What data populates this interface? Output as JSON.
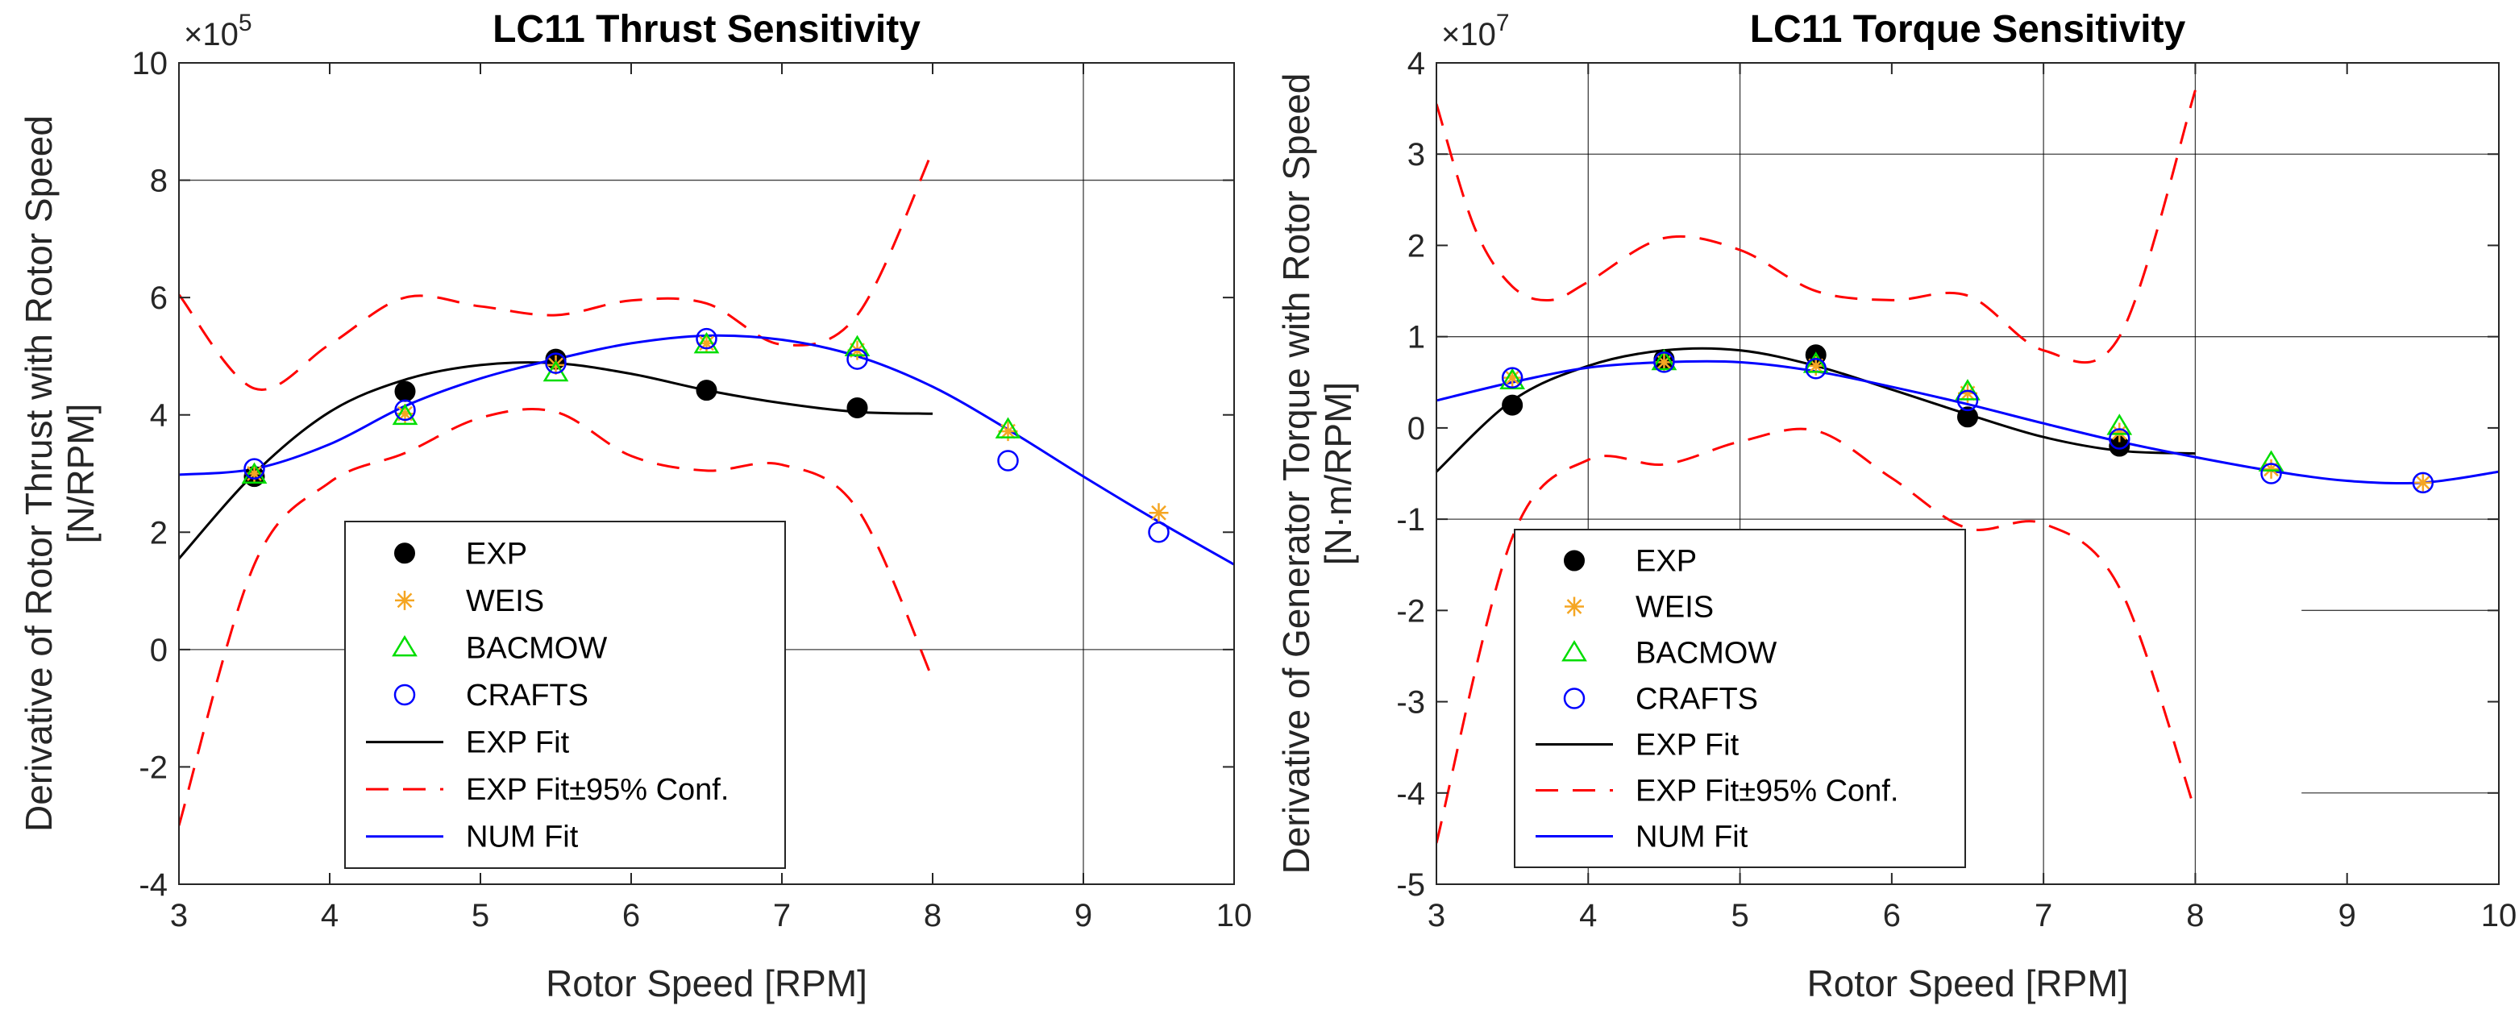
{
  "chart_data": [
    {
      "type": "scatter",
      "title": "LC11 Thrust Sensitivity",
      "xlabel": "Rotor Speed [RPM]",
      "ylabel_lines": [
        "Derivative of Rotor Thrust with Rotor Speed",
        "[N/RPM]"
      ],
      "y_multiplier": "×10",
      "y_multiplier_exp": "5",
      "xlim": [
        3,
        10
      ],
      "ylim": [
        -4,
        10
      ],
      "xticks": [
        "3",
        "4",
        "5",
        "6",
        "7",
        "8",
        "9",
        "10"
      ],
      "yticks": [
        "-4",
        "-2",
        "0",
        "2",
        "4",
        "6",
        "8",
        "10"
      ],
      "series": [
        {
          "name": "EXP",
          "marker": "filled-circle",
          "color": "#000000",
          "x": [
            3.5,
            4.5,
            5.5,
            6.5,
            7.5
          ],
          "y": [
            2.95,
            4.4,
            4.95,
            4.42,
            4.12
          ]
        },
        {
          "name": "WEIS",
          "marker": "asterisk",
          "color": "#f5a623",
          "x": [
            3.5,
            4.5,
            5.5,
            6.5,
            7.5,
            8.5,
            9.5
          ],
          "y": [
            3.0,
            4.02,
            4.85,
            5.22,
            5.1,
            3.72,
            2.33
          ]
        },
        {
          "name": "BACMOW",
          "marker": "triangle",
          "color": "#00dd00",
          "x": [
            3.5,
            4.5,
            5.5,
            6.5,
            7.5,
            8.5
          ],
          "y": [
            2.98,
            3.98,
            4.72,
            5.2,
            5.15,
            3.75
          ]
        },
        {
          "name": "CRAFTS",
          "marker": "circle",
          "color": "#0000ff",
          "x": [
            3.5,
            4.5,
            5.5,
            6.5,
            7.5,
            8.5,
            9.5
          ],
          "y": [
            3.08,
            4.08,
            4.88,
            5.3,
            4.95,
            3.22,
            2.0
          ]
        },
        {
          "name": "EXP Fit",
          "line": "solid",
          "color": "#000000",
          "x": [
            3,
            3.5,
            4,
            4.5,
            5,
            5.5,
            6,
            6.5,
            7,
            7.5,
            8
          ],
          "y": [
            1.55,
            3.0,
            4.05,
            4.6,
            4.85,
            4.88,
            4.7,
            4.42,
            4.2,
            4.05,
            4.02
          ]
        },
        {
          "name": "EXP Fit±95% Conf.",
          "line": "dashed",
          "color": "#ff0000",
          "x": [
            3,
            3.5,
            4,
            4.5,
            5,
            5.5,
            6,
            6.5,
            7,
            7.5,
            8
          ],
          "y": [
            6.05,
            4.45,
            5.2,
            6.0,
            5.85,
            5.7,
            5.95,
            5.9,
            5.2,
            5.7,
            8.5
          ],
          "x_lower": [
            3,
            3.5,
            4,
            4.5,
            5,
            5.5,
            6,
            6.5,
            7,
            7.5,
            8
          ],
          "y_lower": [
            -3.0,
            1.45,
            2.85,
            3.35,
            3.95,
            4.05,
            3.3,
            3.05,
            3.15,
            2.4,
            -0.5
          ]
        },
        {
          "name": "NUM Fit",
          "line": "solid",
          "color": "#0000ff",
          "x": [
            3,
            3.5,
            4,
            4.5,
            5,
            5.5,
            6,
            6.5,
            7,
            7.5,
            8,
            8.5,
            9,
            9.5,
            10
          ],
          "y": [
            2.98,
            3.08,
            3.5,
            4.15,
            4.62,
            4.95,
            5.22,
            5.35,
            5.28,
            5.0,
            4.48,
            3.75,
            2.95,
            2.18,
            1.45
          ]
        }
      ],
      "grid_h": [
        0,
        8
      ],
      "grid_v": [
        9
      ],
      "legend_position": "lower-left"
    },
    {
      "type": "scatter",
      "title": "LC11 Torque Sensitivity",
      "xlabel": "Rotor Speed [RPM]",
      "ylabel_lines": [
        "Derivative of Generator Torque with Rotor Speed",
        "[N·m/RPM]"
      ],
      "y_multiplier": "×10",
      "y_multiplier_exp": "7",
      "xlim": [
        3,
        10
      ],
      "ylim": [
        -5,
        4
      ],
      "xticks": [
        "3",
        "4",
        "5",
        "6",
        "7",
        "8",
        "9",
        "10"
      ],
      "yticks": [
        "-5",
        "-4",
        "-3",
        "-2",
        "-1",
        "0",
        "1",
        "2",
        "3",
        "4"
      ],
      "series": [
        {
          "name": "EXP",
          "marker": "filled-circle",
          "color": "#000000",
          "x": [
            3.5,
            4.5,
            5.5,
            6.5,
            7.5
          ],
          "y": [
            0.25,
            0.75,
            0.8,
            0.12,
            -0.2
          ]
        },
        {
          "name": "WEIS",
          "marker": "asterisk",
          "color": "#f5a623",
          "x": [
            3.5,
            4.5,
            5.5,
            6.5,
            7.5,
            8.5,
            9.5
          ],
          "y": [
            0.55,
            0.72,
            0.68,
            0.38,
            -0.05,
            -0.45,
            -0.6
          ]
        },
        {
          "name": "BACMOW",
          "marker": "triangle",
          "color": "#00dd00",
          "x": [
            3.5,
            4.5,
            5.5,
            6.5,
            7.5,
            8.5
          ],
          "y": [
            0.52,
            0.73,
            0.7,
            0.4,
            0.02,
            -0.38
          ]
        },
        {
          "name": "CRAFTS",
          "marker": "circle",
          "color": "#0000ff",
          "x": [
            3.5,
            4.5,
            5.5,
            6.5,
            7.5,
            8.5,
            9.5
          ],
          "y": [
            0.55,
            0.72,
            0.65,
            0.3,
            -0.12,
            -0.5,
            -0.6
          ]
        },
        {
          "name": "EXP Fit",
          "line": "solid",
          "color": "#000000",
          "x": [
            3,
            3.5,
            4,
            4.5,
            5,
            5.5,
            6,
            6.5,
            7,
            7.5,
            8
          ],
          "y": [
            -0.48,
            0.3,
            0.68,
            0.85,
            0.85,
            0.68,
            0.42,
            0.15,
            -0.1,
            -0.25,
            -0.28
          ]
        },
        {
          "name": "EXP Fit±95% Conf.",
          "line": "dashed",
          "color": "#ff0000",
          "x": [
            3,
            3.25,
            3.5,
            3.75,
            4,
            4.5,
            5,
            5.5,
            6,
            6.5,
            7,
            7.5,
            8
          ],
          "y": [
            3.55,
            2.2,
            1.55,
            1.4,
            1.6,
            2.08,
            1.95,
            1.5,
            1.4,
            1.45,
            0.85,
            1.0,
            3.7
          ],
          "x_lower": [
            3,
            3.5,
            4,
            4.5,
            5,
            5.5,
            6,
            6.5,
            7,
            7.5,
            8
          ],
          "y_lower": [
            -4.55,
            -1.2,
            -0.35,
            -0.4,
            -0.15,
            -0.03,
            -0.55,
            -1.1,
            -1.05,
            -1.75,
            -4.2
          ]
        },
        {
          "name": "NUM Fit",
          "line": "solid",
          "color": "#0000ff",
          "x": [
            3,
            3.5,
            4,
            4.5,
            5,
            5.5,
            6,
            6.5,
            7,
            7.5,
            8,
            8.5,
            9,
            9.5,
            10
          ],
          "y": [
            0.3,
            0.5,
            0.66,
            0.72,
            0.72,
            0.62,
            0.45,
            0.26,
            0.05,
            -0.15,
            -0.32,
            -0.47,
            -0.58,
            -0.6,
            -0.48
          ]
        }
      ],
      "grid_h": [
        3,
        1,
        -1
      ],
      "grid_h_short": [
        -2,
        -4
      ],
      "grid_v": [
        4,
        5,
        7,
        8
      ],
      "legend_position": "lower-left"
    }
  ]
}
